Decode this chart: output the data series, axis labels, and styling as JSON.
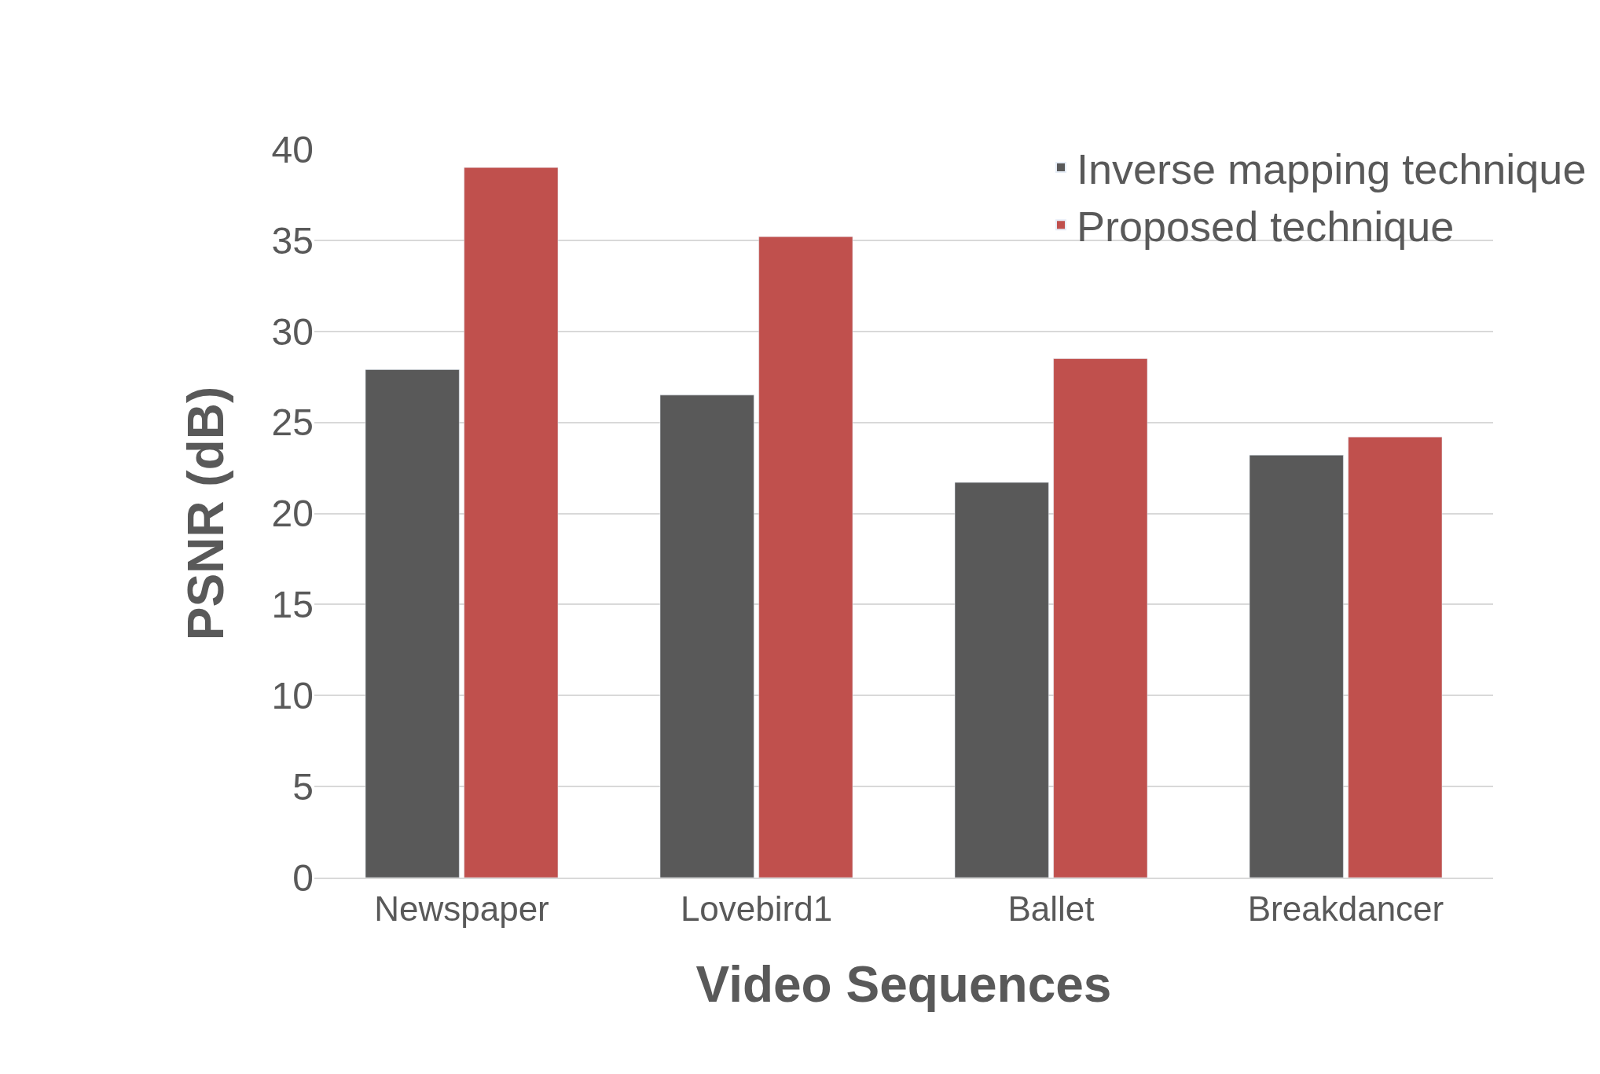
{
  "chart_data": {
    "type": "bar",
    "xlabel": "Video Sequences",
    "ylabel": "PSNR (dB)",
    "categories": [
      "Newspaper",
      "Lovebird1",
      "Ballet",
      "Breakdancer"
    ],
    "series": [
      {
        "name": "Inverse mapping technique",
        "color": "#595959",
        "values": [
          27.9,
          26.5,
          21.7,
          23.2
        ]
      },
      {
        "name": "Proposed technique",
        "color": "#c0504d",
        "values": [
          39.0,
          35.2,
          28.5,
          24.2
        ]
      }
    ],
    "ylim": [
      0,
      40
    ],
    "yticks": [
      0,
      5,
      10,
      15,
      20,
      25,
      30,
      35,
      40
    ],
    "grid": "y",
    "legend": "top right"
  }
}
